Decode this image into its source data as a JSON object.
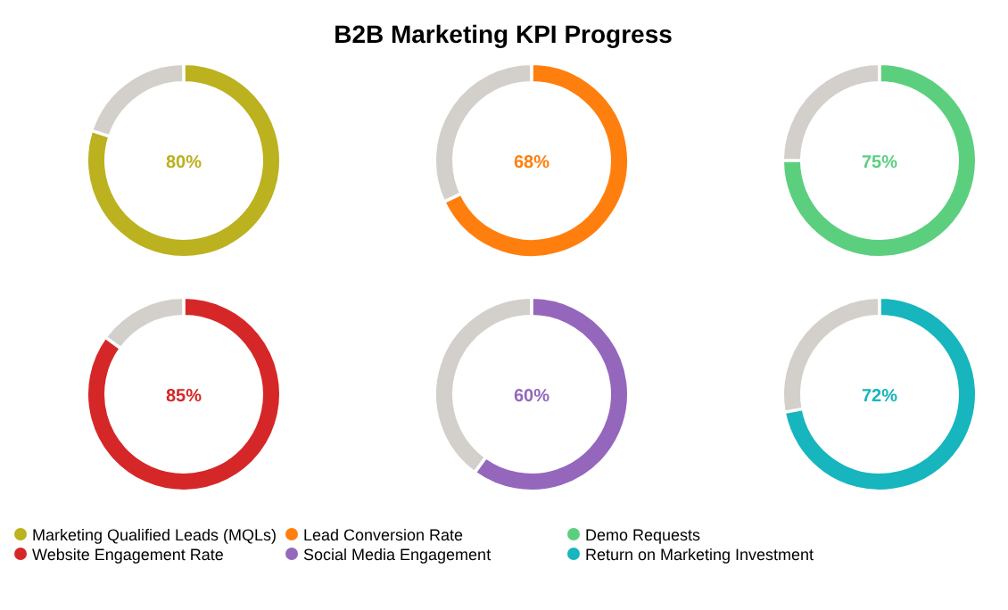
{
  "chart_data": [
    {
      "type": "donut",
      "categories": [
        "Marketing Qualified Leads (MQLs)",
        null
      ],
      "values": [
        80,
        20
      ],
      "colors": [
        "#bcb11f",
        "#d3d0cb"
      ],
      "value_labels": [
        "80%",
        null
      ],
      "legend": "bottom"
    },
    {
      "type": "donut",
      "title": "B2B Marketing KPI Progress",
      "categories": [
        "Lead Conversion Rate",
        null
      ],
      "values": [
        68,
        32
      ],
      "colors": [
        "#ff7f0e",
        "#d3d0cb"
      ],
      "value_labels": [
        "68%",
        null
      ],
      "legend": "bottom"
    },
    {
      "type": "donut",
      "categories": [
        "Demo Requests",
        null
      ],
      "values": [
        75,
        25
      ],
      "colors": [
        "#5ccf7f",
        "#d3d0cb"
      ],
      "value_labels": [
        "75%",
        null
      ],
      "legend": "bottom"
    },
    {
      "type": "donut",
      "categories": [
        "Website Engagement Rate",
        null
      ],
      "values": [
        85,
        15
      ],
      "colors": [
        "#d62728",
        "#d3d0cb"
      ],
      "value_labels": [
        "85%",
        null
      ],
      "legend": "bottom"
    },
    {
      "type": "donut",
      "categories": [
        "Social Media Engagement",
        null
      ],
      "values": [
        60,
        40
      ],
      "colors": [
        "#9467bd",
        "#d3d0cb"
      ],
      "value_labels": [
        "60%",
        null
      ],
      "legend": "bottom"
    },
    {
      "type": "donut",
      "categories": [
        "Return on Marketing Investment",
        null
      ],
      "values": [
        72,
        28
      ],
      "colors": [
        "#17b5be",
        "#d3d0cb"
      ],
      "value_labels": [
        "72%",
        null
      ],
      "legend": "bottom"
    }
  ]
}
